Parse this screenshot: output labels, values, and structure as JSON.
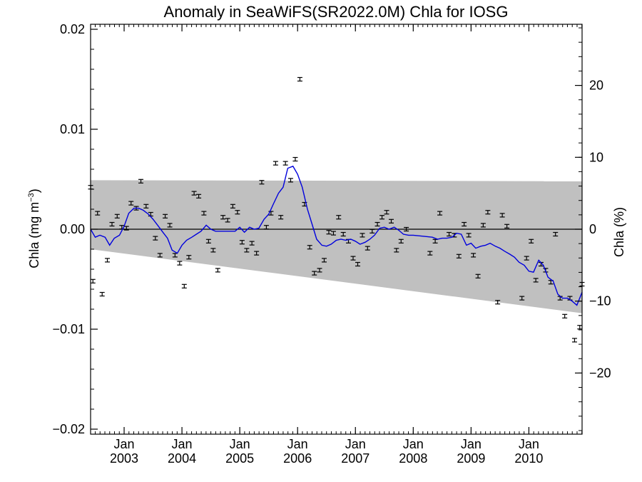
{
  "chart_data": {
    "type": "scatter",
    "title": "Anomaly in SeaWiFS(SR2022.0M) Chla for IOSG",
    "ylabel_left_main": "Chla (mg m",
    "ylabel_left_sup": "−3",
    "ylabel_left_close": ")",
    "ylabel_right": "Chla (%)",
    "xlim": [
      2002.42,
      2010.92
    ],
    "ylim_left": [
      -0.0205,
      0.0205
    ],
    "ylim_right": [
      -28.5,
      28.5
    ],
    "yticks_left": [
      {
        "value": 0.02,
        "label": "0.02"
      },
      {
        "value": 0.01,
        "label": "0.01"
      },
      {
        "value": 0.0,
        "label": "0.00"
      },
      {
        "value": -0.01,
        "label": "−0.01"
      },
      {
        "value": -0.02,
        "label": "−0.02"
      }
    ],
    "yticks_right": [
      {
        "value": 20,
        "label": "20"
      },
      {
        "value": 10,
        "label": "10"
      },
      {
        "value": 0,
        "label": "0"
      },
      {
        "value": -10,
        "label": "−10"
      },
      {
        "value": -20,
        "label": "−20"
      }
    ],
    "xticks": [
      {
        "value": 2003.0,
        "month": "Jan",
        "year": "2003"
      },
      {
        "value": 2004.0,
        "month": "Jan",
        "year": "2004"
      },
      {
        "value": 2005.0,
        "month": "Jan",
        "year": "2005"
      },
      {
        "value": 2006.0,
        "month": "Jan",
        "year": "2006"
      },
      {
        "value": 2007.0,
        "month": "Jan",
        "year": "2007"
      },
      {
        "value": 2008.0,
        "month": "Jan",
        "year": "2008"
      },
      {
        "value": 2009.0,
        "month": "Jan",
        "year": "2009"
      },
      {
        "value": 2010.0,
        "month": "Jan",
        "year": "2010"
      }
    ],
    "band": {
      "color": "#c0c0c0",
      "upper": [
        [
          2002.42,
          0.0049
        ],
        [
          2010.92,
          0.0048
        ]
      ],
      "lower": [
        [
          2002.42,
          -0.002
        ],
        [
          2010.92,
          -0.0084
        ]
      ]
    },
    "zero_line": 0.0,
    "points_color": "#000000",
    "smooth_color": "#0000dd",
    "points": [
      [
        2002.42,
        0.0042
      ],
      [
        2002.46,
        -0.0052
      ],
      [
        2002.54,
        0.0016
      ],
      [
        2002.62,
        -0.0065
      ],
      [
        2002.71,
        -0.0031
      ],
      [
        2002.79,
        0.0005
      ],
      [
        2002.88,
        0.0013
      ],
      [
        2002.96,
        0.0002
      ],
      [
        2003.04,
        0.0001
      ],
      [
        2003.12,
        0.0026
      ],
      [
        2003.21,
        0.0021
      ],
      [
        2003.29,
        0.0048
      ],
      [
        2003.38,
        0.0023
      ],
      [
        2003.46,
        0.0015
      ],
      [
        2003.54,
        -0.0009
      ],
      [
        2003.62,
        -0.0026
      ],
      [
        2003.71,
        0.0013
      ],
      [
        2003.79,
        0.0004
      ],
      [
        2003.88,
        -0.0026
      ],
      [
        2003.96,
        -0.0034
      ],
      [
        2004.04,
        -0.0057
      ],
      [
        2004.12,
        -0.0028
      ],
      [
        2004.21,
        0.0036
      ],
      [
        2004.29,
        0.0033
      ],
      [
        2004.38,
        0.0016
      ],
      [
        2004.46,
        -0.0012
      ],
      [
        2004.54,
        -0.0021
      ],
      [
        2004.62,
        -0.0041
      ],
      [
        2004.71,
        0.0012
      ],
      [
        2004.79,
        0.0009
      ],
      [
        2004.88,
        0.0023
      ],
      [
        2004.96,
        0.0017
      ],
      [
        2005.04,
        -0.0013
      ],
      [
        2005.12,
        -0.0021
      ],
      [
        2005.21,
        -0.0014
      ],
      [
        2005.29,
        -0.0024
      ],
      [
        2005.38,
        0.0047
      ],
      [
        2005.46,
        0.0002
      ],
      [
        2005.54,
        0.0016
      ],
      [
        2005.62,
        0.0066
      ],
      [
        2005.71,
        0.0012
      ],
      [
        2005.79,
        0.0066
      ],
      [
        2005.88,
        0.0049
      ],
      [
        2005.96,
        0.007
      ],
      [
        2006.04,
        0.015
      ],
      [
        2006.12,
        0.0025
      ],
      [
        2006.21,
        -0.0018
      ],
      [
        2006.29,
        -0.0044
      ],
      [
        2006.38,
        -0.0041
      ],
      [
        2006.46,
        -0.0031
      ],
      [
        2006.54,
        -0.0003
      ],
      [
        2006.62,
        -0.0004
      ],
      [
        2006.71,
        0.0012
      ],
      [
        2006.79,
        -0.0005
      ],
      [
        2006.88,
        -0.0012
      ],
      [
        2006.96,
        -0.0029
      ],
      [
        2007.04,
        -0.0035
      ],
      [
        2007.12,
        -0.0006
      ],
      [
        2007.21,
        -0.0019
      ],
      [
        2007.29,
        -0.0002
      ],
      [
        2007.38,
        0.0005
      ],
      [
        2007.46,
        0.0012
      ],
      [
        2007.54,
        0.0017
      ],
      [
        2007.62,
        0.0008
      ],
      [
        2007.71,
        -0.0021
      ],
      [
        2007.79,
        -0.0012
      ],
      [
        2007.88,
        0.0
      ],
      [
        2008.29,
        -0.0024
      ],
      [
        2008.38,
        -0.0012
      ],
      [
        2008.46,
        0.0016
      ],
      [
        2008.62,
        -0.0005
      ],
      [
        2008.71,
        -0.0006
      ],
      [
        2008.79,
        -0.0027
      ],
      [
        2008.88,
        0.0005
      ],
      [
        2008.96,
        -0.0006
      ],
      [
        2009.04,
        -0.0026
      ],
      [
        2009.12,
        -0.0047
      ],
      [
        2009.21,
        0.0004
      ],
      [
        2009.29,
        0.0017
      ],
      [
        2009.46,
        -0.0073
      ],
      [
        2009.54,
        0.0014
      ],
      [
        2009.62,
        0.0003
      ],
      [
        2009.88,
        -0.0069
      ],
      [
        2009.96,
        -0.0029
      ],
      [
        2010.04,
        -0.0012
      ],
      [
        2010.12,
        -0.0051
      ],
      [
        2010.21,
        -0.0035
      ],
      [
        2010.29,
        -0.0041
      ],
      [
        2010.38,
        -0.0053
      ],
      [
        2010.46,
        -0.0005
      ],
      [
        2010.54,
        -0.0069
      ],
      [
        2010.62,
        -0.0087
      ],
      [
        2010.71,
        -0.0069
      ],
      [
        2010.79,
        -0.0111
      ],
      [
        2010.88,
        -0.0098
      ],
      [
        2010.92,
        -0.0055
      ]
    ],
    "smooth": [
      [
        2002.42,
        0.0
      ],
      [
        2002.5,
        -0.0008
      ],
      [
        2002.58,
        -0.0006
      ],
      [
        2002.67,
        -0.0008
      ],
      [
        2002.75,
        -0.0016
      ],
      [
        2002.83,
        -0.0009
      ],
      [
        2002.92,
        -0.0006
      ],
      [
        2003.0,
        0.0003
      ],
      [
        2003.08,
        0.0016
      ],
      [
        2003.17,
        0.0021
      ],
      [
        2003.25,
        0.0021
      ],
      [
        2003.33,
        0.0019
      ],
      [
        2003.42,
        0.0015
      ],
      [
        2003.5,
        0.001
      ],
      [
        2003.58,
        0.0004
      ],
      [
        2003.67,
        -0.0003
      ],
      [
        2003.75,
        -0.0009
      ],
      [
        2003.83,
        -0.0021
      ],
      [
        2003.92,
        -0.0024
      ],
      [
        2004.0,
        -0.0016
      ],
      [
        2004.08,
        -0.0011
      ],
      [
        2004.17,
        -0.0008
      ],
      [
        2004.25,
        -0.0005
      ],
      [
        2004.33,
        -0.0002
      ],
      [
        2004.42,
        0.0004
      ],
      [
        2004.5,
        0.0
      ],
      [
        2004.58,
        -0.0002
      ],
      [
        2004.67,
        -0.0002
      ],
      [
        2004.75,
        -0.0002
      ],
      [
        2004.83,
        -0.0002
      ],
      [
        2004.92,
        -0.0002
      ],
      [
        2005.0,
        0.0002
      ],
      [
        2005.08,
        -0.0003
      ],
      [
        2005.17,
        0.0002
      ],
      [
        2005.25,
        0.0
      ],
      [
        2005.33,
        0.0001
      ],
      [
        2005.42,
        0.001
      ],
      [
        2005.5,
        0.0015
      ],
      [
        2005.58,
        0.0025
      ],
      [
        2005.67,
        0.0036
      ],
      [
        2005.75,
        0.0042
      ],
      [
        2005.83,
        0.0061
      ],
      [
        2005.92,
        0.0063
      ],
      [
        2006.0,
        0.0055
      ],
      [
        2006.08,
        0.0042
      ],
      [
        2006.17,
        0.002
      ],
      [
        2006.25,
        0.0005
      ],
      [
        2006.33,
        -0.001
      ],
      [
        2006.42,
        -0.0016
      ],
      [
        2006.5,
        -0.0017
      ],
      [
        2006.58,
        -0.0015
      ],
      [
        2006.67,
        -0.0011
      ],
      [
        2006.75,
        -0.001
      ],
      [
        2006.83,
        -0.0011
      ],
      [
        2006.92,
        -0.001
      ],
      [
        2007.0,
        -0.0012
      ],
      [
        2007.08,
        -0.0015
      ],
      [
        2007.17,
        -0.0013
      ],
      [
        2007.25,
        -0.001
      ],
      [
        2007.33,
        -0.0006
      ],
      [
        2007.42,
        0.0001
      ],
      [
        2007.5,
        0.0002
      ],
      [
        2007.58,
        0.0
      ],
      [
        2007.67,
        0.0002
      ],
      [
        2007.75,
        -0.0001
      ],
      [
        2007.83,
        -0.0005
      ],
      [
        2007.92,
        -0.0006
      ],
      [
        2008.0,
        -0.0006
      ],
      [
        2008.17,
        -0.0007
      ],
      [
        2008.33,
        -0.0008
      ],
      [
        2008.42,
        -0.001
      ],
      [
        2008.5,
        -0.0009
      ],
      [
        2008.58,
        -0.0009
      ],
      [
        2008.67,
        -0.0008
      ],
      [
        2008.75,
        -0.0004
      ],
      [
        2008.83,
        -0.0005
      ],
      [
        2008.92,
        -0.0016
      ],
      [
        2009.0,
        -0.0014
      ],
      [
        2009.08,
        -0.0019
      ],
      [
        2009.17,
        -0.0017
      ],
      [
        2009.25,
        -0.0016
      ],
      [
        2009.33,
        -0.0014
      ],
      [
        2009.42,
        -0.0017
      ],
      [
        2009.5,
        -0.0019
      ],
      [
        2009.58,
        -0.0022
      ],
      [
        2009.67,
        -0.0025
      ],
      [
        2009.75,
        -0.0028
      ],
      [
        2009.83,
        -0.0033
      ],
      [
        2009.92,
        -0.0036
      ],
      [
        2010.0,
        -0.0042
      ],
      [
        2010.08,
        -0.0043
      ],
      [
        2010.17,
        -0.0031
      ],
      [
        2010.25,
        -0.0036
      ],
      [
        2010.33,
        -0.0048
      ],
      [
        2010.42,
        -0.0052
      ],
      [
        2010.5,
        -0.0065
      ],
      [
        2010.58,
        -0.0069
      ],
      [
        2010.67,
        -0.0069
      ],
      [
        2010.75,
        -0.0072
      ],
      [
        2010.83,
        -0.0076
      ],
      [
        2010.92,
        -0.0063
      ]
    ]
  }
}
